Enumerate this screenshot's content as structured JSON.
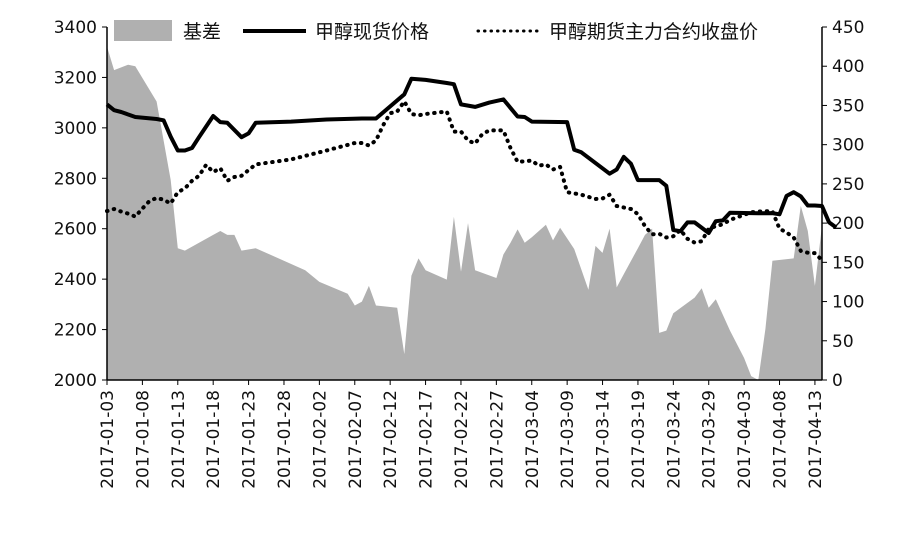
{
  "chart_data": {
    "type": "line",
    "legend": {
      "placement": "top",
      "items": [
        {
          "name": "基差",
          "style": "area",
          "color": "#b0b0b0"
        },
        {
          "name": "甲醇现货价格",
          "style": "solid",
          "color": "#000000"
        },
        {
          "name": "甲醇期货主力合约收盘价",
          "style": "dotted",
          "color": "#000000"
        }
      ]
    },
    "x_tick_labels": [
      "2017-01-03",
      "2017-01-08",
      "2017-01-13",
      "2017-01-18",
      "2017-01-23",
      "2017-01-28",
      "2017-02-02",
      "2017-02-07",
      "2017-02-12",
      "2017-02-17",
      "2017-02-22",
      "2017-02-27",
      "2017-03-04",
      "2017-03-09",
      "2017-03-14",
      "2017-03-19",
      "2017-03-24",
      "2017-03-29",
      "2017-04-03",
      "2017-04-08",
      "2017-04-13"
    ],
    "x_range": [
      "2017-01-03",
      "2017-04-14"
    ],
    "y_left": {
      "min": 2000,
      "max": 3400,
      "step": 200,
      "ticks": [
        "2000",
        "2200",
        "2400",
        "2600",
        "2800",
        "3000",
        "3200",
        "3400"
      ]
    },
    "y_right": {
      "min": 0,
      "max": 450,
      "step": 50,
      "ticks": [
        "0",
        "50",
        "100",
        "150",
        "200",
        "250",
        "300",
        "350",
        "400",
        "450"
      ]
    },
    "grid": false,
    "series": [
      {
        "name": "基差",
        "axis": "right",
        "style": "area",
        "points": [
          [
            "2017-01-03",
            425
          ],
          [
            "2017-01-04",
            395
          ],
          [
            "2017-01-06",
            402
          ],
          [
            "2017-01-07",
            400
          ],
          [
            "2017-01-10",
            355
          ],
          [
            "2017-01-12",
            255
          ],
          [
            "2017-01-13",
            168
          ],
          [
            "2017-01-14",
            165
          ],
          [
            "2017-01-18",
            185
          ],
          [
            "2017-01-19",
            190
          ],
          [
            "2017-01-20",
            185
          ],
          [
            "2017-01-21",
            185
          ],
          [
            "2017-01-22",
            165
          ],
          [
            "2017-01-24",
            168
          ],
          [
            "2017-01-31",
            140
          ],
          [
            "2017-02-02",
            125
          ],
          [
            "2017-02-06",
            110
          ],
          [
            "2017-02-07",
            95
          ],
          [
            "2017-02-08",
            100
          ],
          [
            "2017-02-09",
            120
          ],
          [
            "2017-02-10",
            95
          ],
          [
            "2017-02-13",
            92
          ],
          [
            "2017-02-14",
            33
          ],
          [
            "2017-02-15",
            133
          ],
          [
            "2017-02-16",
            155
          ],
          [
            "2017-02-17",
            140
          ],
          [
            "2017-02-20",
            128
          ],
          [
            "2017-02-21",
            208
          ],
          [
            "2017-02-22",
            138
          ],
          [
            "2017-02-23",
            200
          ],
          [
            "2017-02-24",
            140
          ],
          [
            "2017-02-27",
            130
          ],
          [
            "2017-02-28",
            160
          ],
          [
            "2017-03-01",
            175
          ],
          [
            "2017-03-02",
            192
          ],
          [
            "2017-03-03",
            175
          ],
          [
            "2017-03-04",
            182
          ],
          [
            "2017-03-06",
            198
          ],
          [
            "2017-03-07",
            178
          ],
          [
            "2017-03-08",
            194
          ],
          [
            "2017-03-10",
            167
          ],
          [
            "2017-03-12",
            115
          ],
          [
            "2017-03-13",
            171
          ],
          [
            "2017-03-14",
            162
          ],
          [
            "2017-03-15",
            193
          ],
          [
            "2017-03-16",
            118
          ],
          [
            "2017-03-17",
            135
          ],
          [
            "2017-03-19",
            168
          ],
          [
            "2017-03-20",
            185
          ],
          [
            "2017-03-21",
            193
          ],
          [
            "2017-03-22",
            60
          ],
          [
            "2017-03-23",
            63
          ],
          [
            "2017-03-24",
            85
          ],
          [
            "2017-03-27",
            105
          ],
          [
            "2017-03-28",
            117
          ],
          [
            "2017-03-29",
            92
          ],
          [
            "2017-03-30",
            103
          ],
          [
            "2017-04-01",
            63
          ],
          [
            "2017-04-03",
            28
          ],
          [
            "2017-04-04",
            5
          ],
          [
            "2017-04-05",
            0
          ],
          [
            "2017-04-06",
            65
          ],
          [
            "2017-04-07",
            152
          ],
          [
            "2017-04-10",
            155
          ],
          [
            "2017-04-11",
            222
          ],
          [
            "2017-04-12",
            190
          ],
          [
            "2017-04-13",
            120
          ],
          [
            "2017-04-14",
            197
          ]
        ]
      },
      {
        "name": "甲醇现货价格",
        "axis": "left",
        "style": "solid",
        "points": [
          [
            "2017-01-03",
            3093
          ],
          [
            "2017-01-04",
            3070
          ],
          [
            "2017-01-05",
            3063
          ],
          [
            "2017-01-06",
            3053
          ],
          [
            "2017-01-07",
            3043
          ],
          [
            "2017-01-10",
            3035
          ],
          [
            "2017-01-11",
            3030
          ],
          [
            "2017-01-12",
            2965
          ],
          [
            "2017-01-13",
            2910
          ],
          [
            "2017-01-14",
            2910
          ],
          [
            "2017-01-15",
            2920
          ],
          [
            "2017-01-16",
            2963
          ],
          [
            "2017-01-18",
            3047
          ],
          [
            "2017-01-19",
            3023
          ],
          [
            "2017-01-20",
            3020
          ],
          [
            "2017-01-22",
            2963
          ],
          [
            "2017-01-23",
            2978
          ],
          [
            "2017-01-24",
            3020
          ],
          [
            "2017-01-29",
            3025
          ],
          [
            "2017-02-03",
            3033
          ],
          [
            "2017-02-08",
            3037
          ],
          [
            "2017-02-10",
            3037
          ],
          [
            "2017-02-12",
            3085
          ],
          [
            "2017-02-14",
            3133
          ],
          [
            "2017-02-15",
            3195
          ],
          [
            "2017-02-17",
            3190
          ],
          [
            "2017-02-20",
            3178
          ],
          [
            "2017-02-21",
            3173
          ],
          [
            "2017-02-22",
            3093
          ],
          [
            "2017-02-24",
            3083
          ],
          [
            "2017-02-26",
            3100
          ],
          [
            "2017-02-28",
            3113
          ],
          [
            "2017-03-02",
            3045
          ],
          [
            "2017-03-03",
            3043
          ],
          [
            "2017-03-04",
            3025
          ],
          [
            "2017-03-09",
            3023
          ],
          [
            "2017-03-10",
            2913
          ],
          [
            "2017-03-11",
            2903
          ],
          [
            "2017-03-15",
            2818
          ],
          [
            "2017-03-16",
            2835
          ],
          [
            "2017-03-17",
            2885
          ],
          [
            "2017-03-18",
            2858
          ],
          [
            "2017-03-19",
            2793
          ],
          [
            "2017-03-22",
            2793
          ],
          [
            "2017-03-23",
            2770
          ],
          [
            "2017-03-24",
            2595
          ],
          [
            "2017-03-25",
            2590
          ],
          [
            "2017-03-26",
            2625
          ],
          [
            "2017-03-27",
            2625
          ],
          [
            "2017-03-29",
            2583
          ],
          [
            "2017-03-30",
            2630
          ],
          [
            "2017-03-31",
            2633
          ],
          [
            "2017-04-01",
            2663
          ],
          [
            "2017-04-05",
            2661
          ],
          [
            "2017-04-07",
            2662
          ],
          [
            "2017-04-08",
            2657
          ],
          [
            "2017-04-09",
            2730
          ],
          [
            "2017-04-10",
            2745
          ],
          [
            "2017-04-11",
            2728
          ],
          [
            "2017-04-12",
            2692
          ],
          [
            "2017-04-13",
            2692
          ],
          [
            "2017-04-14",
            2690
          ],
          [
            "2017-04-15",
            2625
          ],
          [
            "2017-04-16",
            2605
          ]
        ]
      },
      {
        "name": "甲醇期货主力合约收盘价",
        "axis": "left",
        "style": "dotted",
        "points": [
          [
            "2017-01-03",
            2670
          ],
          [
            "2017-01-04",
            2678
          ],
          [
            "2017-01-05",
            2668
          ],
          [
            "2017-01-06",
            2660
          ],
          [
            "2017-01-07",
            2648
          ],
          [
            "2017-01-08",
            2680
          ],
          [
            "2017-01-09",
            2710
          ],
          [
            "2017-01-10",
            2722
          ],
          [
            "2017-01-11",
            2715
          ],
          [
            "2017-01-12",
            2700
          ],
          [
            "2017-01-13",
            2745
          ],
          [
            "2017-01-14",
            2760
          ],
          [
            "2017-01-15",
            2790
          ],
          [
            "2017-01-16",
            2810
          ],
          [
            "2017-01-17",
            2853
          ],
          [
            "2017-01-18",
            2825
          ],
          [
            "2017-01-19",
            2840
          ],
          [
            "2017-01-20",
            2790
          ],
          [
            "2017-01-21",
            2805
          ],
          [
            "2017-01-22",
            2810
          ],
          [
            "2017-01-24",
            2855
          ],
          [
            "2017-01-29",
            2875
          ],
          [
            "2017-02-03",
            2910
          ],
          [
            "2017-02-07",
            2940
          ],
          [
            "2017-02-08",
            2940
          ],
          [
            "2017-02-09",
            2930
          ],
          [
            "2017-02-10",
            2950
          ],
          [
            "2017-02-11",
            3010
          ],
          [
            "2017-02-12",
            3058
          ],
          [
            "2017-02-13",
            3065
          ],
          [
            "2017-02-14",
            3105
          ],
          [
            "2017-02-15",
            3055
          ],
          [
            "2017-02-16",
            3050
          ],
          [
            "2017-02-17",
            3055
          ],
          [
            "2017-02-20",
            3065
          ],
          [
            "2017-02-21",
            2985
          ],
          [
            "2017-02-22",
            2985
          ],
          [
            "2017-02-23",
            2950
          ],
          [
            "2017-02-24",
            2938
          ],
          [
            "2017-02-25",
            2975
          ],
          [
            "2017-02-26",
            2990
          ],
          [
            "2017-02-28",
            2990
          ],
          [
            "2017-03-01",
            2920
          ],
          [
            "2017-03-02",
            2865
          ],
          [
            "2017-03-04",
            2870
          ],
          [
            "2017-03-05",
            2850
          ],
          [
            "2017-03-06",
            2855
          ],
          [
            "2017-03-07",
            2835
          ],
          [
            "2017-03-08",
            2845
          ],
          [
            "2017-03-09",
            2745
          ],
          [
            "2017-03-10",
            2740
          ],
          [
            "2017-03-11",
            2735
          ],
          [
            "2017-03-13",
            2718
          ],
          [
            "2017-03-14",
            2720
          ],
          [
            "2017-03-15",
            2735
          ],
          [
            "2017-03-16",
            2690
          ],
          [
            "2017-03-18",
            2678
          ],
          [
            "2017-03-19",
            2658
          ],
          [
            "2017-03-20",
            2610
          ],
          [
            "2017-03-21",
            2578
          ],
          [
            "2017-03-22",
            2580
          ],
          [
            "2017-03-23",
            2565
          ],
          [
            "2017-03-24",
            2570
          ],
          [
            "2017-03-25",
            2595
          ],
          [
            "2017-03-26",
            2560
          ],
          [
            "2017-03-27",
            2545
          ],
          [
            "2017-03-28",
            2550
          ],
          [
            "2017-03-29",
            2600
          ],
          [
            "2017-03-30",
            2610
          ],
          [
            "2017-03-31",
            2618
          ],
          [
            "2017-04-01",
            2635
          ],
          [
            "2017-04-04",
            2665
          ],
          [
            "2017-04-05",
            2668
          ],
          [
            "2017-04-07",
            2670
          ],
          [
            "2017-04-08",
            2600
          ],
          [
            "2017-04-09",
            2585
          ],
          [
            "2017-04-10",
            2565
          ],
          [
            "2017-04-11",
            2512
          ],
          [
            "2017-04-12",
            2505
          ],
          [
            "2017-04-13",
            2503
          ],
          [
            "2017-04-14",
            2475
          ]
        ]
      }
    ]
  }
}
